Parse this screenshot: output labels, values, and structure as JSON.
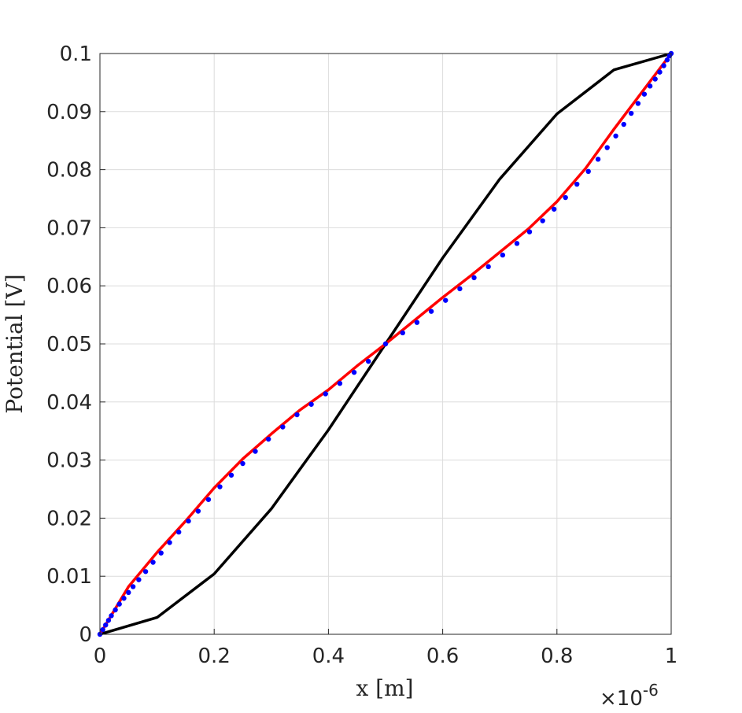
{
  "chart_data": {
    "type": "line",
    "xlabel": "x [m]",
    "ylabel": "Potential [V]",
    "x_exponent": {
      "times": "×10",
      "power": "-6"
    },
    "xlim": [
      0,
      1
    ],
    "ylim": [
      0,
      0.1
    ],
    "x_ticks": [
      "0",
      "0.2",
      "0.4",
      "0.6",
      "0.8",
      "1"
    ],
    "x_tick_values": [
      0,
      0.2,
      0.4,
      0.6,
      0.8,
      1
    ],
    "y_ticks": [
      "0",
      "0.01",
      "0.02",
      "0.03",
      "0.04",
      "0.05",
      "0.06",
      "0.07",
      "0.08",
      "0.09",
      "0.1"
    ],
    "y_tick_values": [
      0,
      0.01,
      0.02,
      0.03,
      0.04,
      0.05,
      0.06,
      0.07,
      0.08,
      0.09,
      0.1
    ],
    "grid": true,
    "series": [
      {
        "color": "#000000",
        "style": "line",
        "x": [
          0,
          0.1,
          0.2,
          0.3,
          0.4,
          0.5,
          0.6,
          0.7,
          0.8,
          0.9,
          1
        ],
        "values": [
          0,
          0.0029,
          0.0104,
          0.0216,
          0.0352,
          0.05,
          0.0648,
          0.0784,
          0.0896,
          0.0972,
          0.1
        ]
      },
      {
        "color": "#ff0000",
        "style": "line",
        "x": [
          0,
          0.05,
          0.1,
          0.15,
          0.2,
          0.25,
          0.3,
          0.35,
          0.4,
          0.45,
          0.5,
          0.55,
          0.6,
          0.65,
          0.7,
          0.75,
          0.8,
          0.85,
          0.9,
          0.95,
          1
        ],
        "values": [
          0,
          0.0082,
          0.0141,
          0.0195,
          0.0252,
          0.0302,
          0.0345,
          0.0386,
          0.0421,
          0.0462,
          0.05,
          0.054,
          0.058,
          0.0618,
          0.0658,
          0.0698,
          0.0745,
          0.0802,
          0.087,
          0.0935,
          0.1
        ]
      },
      {
        "color": "#0000ff",
        "style": "markers",
        "x": [
          0,
          0.005,
          0.01,
          0.015,
          0.02,
          0.027,
          0.034,
          0.042,
          0.05,
          0.058,
          0.068,
          0.08,
          0.093,
          0.107,
          0.122,
          0.138,
          0.155,
          0.172,
          0.19,
          0.21,
          0.23,
          0.25,
          0.272,
          0.295,
          0.32,
          0.345,
          0.37,
          0.395,
          0.42,
          0.445,
          0.47,
          0.5,
          0.53,
          0.555,
          0.58,
          0.605,
          0.63,
          0.655,
          0.68,
          0.705,
          0.73,
          0.752,
          0.775,
          0.795,
          0.815,
          0.835,
          0.855,
          0.872,
          0.888,
          0.903,
          0.917,
          0.93,
          0.942,
          0.953,
          0.963,
          0.972,
          0.98,
          0.987,
          0.993,
          0.997,
          1
        ],
        "values": [
          0,
          0.0008,
          0.0016,
          0.0024,
          0.0032,
          0.0042,
          0.0052,
          0.0062,
          0.0072,
          0.0082,
          0.0094,
          0.0108,
          0.0124,
          0.014,
          0.0158,
          0.0176,
          0.0195,
          0.0212,
          0.0232,
          0.0254,
          0.0274,
          0.0294,
          0.0315,
          0.0336,
          0.0357,
          0.0378,
          0.0396,
          0.0414,
          0.0432,
          0.0451,
          0.047,
          0.05,
          0.0519,
          0.0537,
          0.0556,
          0.0575,
          0.0595,
          0.0614,
          0.0633,
          0.0653,
          0.0673,
          0.0693,
          0.0712,
          0.0732,
          0.0752,
          0.0775,
          0.0797,
          0.0818,
          0.0838,
          0.0858,
          0.0878,
          0.0897,
          0.0914,
          0.093,
          0.0944,
          0.0956,
          0.0968,
          0.0979,
          0.0989,
          0.0996,
          0.1
        ]
      }
    ]
  }
}
